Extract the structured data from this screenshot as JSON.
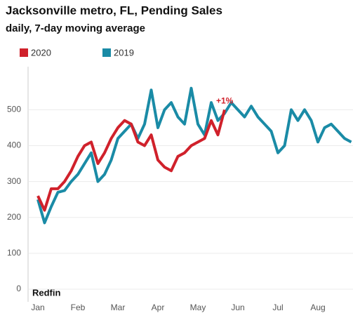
{
  "chart_data": {
    "type": "line",
    "title": "Jacksonville metro, FL, Pending Sales",
    "subtitle": "daily, 7-day moving average",
    "categories": [
      "Jan",
      null,
      null,
      null,
      null,
      null,
      "Feb",
      null,
      null,
      null,
      null,
      null,
      "Mar",
      null,
      null,
      null,
      null,
      null,
      "Apr",
      null,
      null,
      null,
      null,
      null,
      "May",
      null,
      null,
      null,
      null,
      null,
      "Jun",
      null,
      null,
      null,
      null,
      null,
      "Jul",
      null,
      null,
      null,
      null,
      null,
      "Aug",
      null,
      null,
      null,
      null,
      null
    ],
    "series": [
      {
        "name": "2020",
        "color": "#d0212b",
        "values": [
          260,
          220,
          280,
          280,
          300,
          330,
          370,
          400,
          410,
          350,
          380,
          420,
          450,
          470,
          460,
          410,
          400,
          430,
          360,
          340,
          330,
          370,
          380,
          400,
          410,
          420,
          470,
          430,
          500,
          null,
          null,
          null,
          null,
          null,
          null,
          null,
          null,
          null,
          null,
          null,
          null,
          null,
          null,
          null,
          null,
          null,
          null,
          null
        ]
      },
      {
        "name": "2019",
        "color": "#1a8ba6",
        "values": [
          250,
          185,
          230,
          270,
          275,
          300,
          320,
          350,
          380,
          300,
          320,
          360,
          420,
          440,
          460,
          420,
          460,
          555,
          450,
          500,
          520,
          480,
          460,
          560,
          460,
          430,
          520,
          470,
          490,
          520,
          500,
          480,
          510,
          480,
          460,
          440,
          380,
          400,
          500,
          470,
          500,
          470,
          410,
          450,
          460,
          440,
          420,
          410
        ]
      }
    ],
    "annotation": "+1%",
    "source": "Redfin",
    "ylim": [
      0,
      620
    ],
    "yticks": [
      0,
      100,
      200,
      300,
      400,
      500
    ],
    "grid": true
  }
}
